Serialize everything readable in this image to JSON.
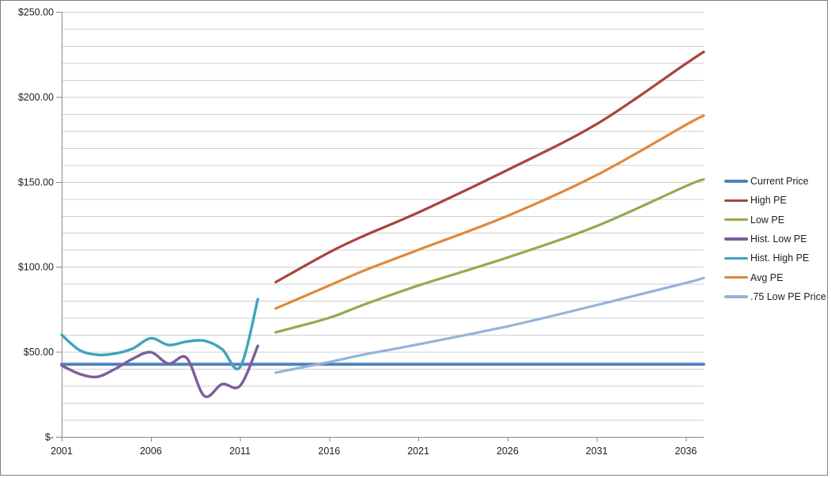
{
  "chart_data": {
    "type": "line",
    "title": "",
    "xlabel": "",
    "ylabel": "",
    "grid": "horizontal-minor-every-10",
    "legend_position": "right",
    "x_axis": {
      "min": 2001,
      "max": 2037,
      "tick_labels": [
        "2001",
        "2006",
        "2011",
        "2016",
        "2021",
        "2026",
        "2031",
        "2036"
      ],
      "tick_values": [
        2001,
        2006,
        2011,
        2016,
        2021,
        2026,
        2031,
        2036
      ]
    },
    "y_axis": {
      "min": 0,
      "max": 250,
      "minor_step": 10,
      "major_step": 50,
      "ticks": [
        {
          "value": 0,
          "label": "$-"
        },
        {
          "value": 50,
          "label": "$50.00"
        },
        {
          "value": 100,
          "label": "$100.00"
        },
        {
          "value": 150,
          "label": "$150.00"
        },
        {
          "value": 200,
          "label": "$200.00"
        },
        {
          "value": 250,
          "label": "$250.00"
        }
      ]
    },
    "series": [
      {
        "name": "Current Price",
        "color": "#4F81BD",
        "width": 3.8,
        "smooth": false,
        "points": [
          [
            2001,
            42.7
          ],
          [
            2037,
            42.7
          ]
        ]
      },
      {
        "name": "High PE",
        "color": "#A8443E",
        "width": 3.2,
        "smooth": true,
        "points": [
          [
            2013,
            91
          ],
          [
            2016,
            108.5
          ],
          [
            2018,
            118.5
          ],
          [
            2021,
            132
          ],
          [
            2026,
            157
          ],
          [
            2031,
            184
          ],
          [
            2036,
            219.5
          ],
          [
            2037,
            226.5
          ]
        ]
      },
      {
        "name": "Low PE",
        "color": "#8FAC51",
        "width": 3.2,
        "smooth": true,
        "points": [
          [
            2013,
            61.5
          ],
          [
            2016,
            70
          ],
          [
            2018,
            78
          ],
          [
            2021,
            89
          ],
          [
            2026,
            105.5
          ],
          [
            2031,
            124
          ],
          [
            2036,
            147.5
          ],
          [
            2037,
            151.5
          ]
        ]
      },
      {
        "name": "Hist. Low PE",
        "color": "#7B5F99",
        "width": 3.4,
        "smooth": true,
        "points": [
          [
            2001,
            42
          ],
          [
            2002,
            37
          ],
          [
            2003,
            35.3
          ],
          [
            2004,
            40
          ],
          [
            2005,
            46
          ],
          [
            2006,
            49.8
          ],
          [
            2007,
            43
          ],
          [
            2008,
            46.5
          ],
          [
            2009,
            24
          ],
          [
            2010,
            31
          ],
          [
            2011,
            30
          ],
          [
            2012,
            53.5
          ]
        ]
      },
      {
        "name": "Hist. High PE",
        "color": "#3FA4BC",
        "width": 3.4,
        "smooth": true,
        "points": [
          [
            2001,
            60
          ],
          [
            2002,
            51
          ],
          [
            2003,
            48.3
          ],
          [
            2004,
            49
          ],
          [
            2005,
            52
          ],
          [
            2006,
            58
          ],
          [
            2007,
            54
          ],
          [
            2008,
            56
          ],
          [
            2009,
            56.5
          ],
          [
            2010,
            51.5
          ],
          [
            2011,
            41
          ],
          [
            2012,
            81
          ]
        ]
      },
      {
        "name": "Avg PE",
        "color": "#E0883C",
        "width": 3.2,
        "smooth": true,
        "points": [
          [
            2013,
            75.5
          ],
          [
            2016,
            89
          ],
          [
            2018,
            98
          ],
          [
            2021,
            110
          ],
          [
            2026,
            130
          ],
          [
            2031,
            154
          ],
          [
            2036,
            183.5
          ],
          [
            2037,
            189
          ]
        ]
      },
      {
        "name": ".75 Low PE Price",
        "color": "#95B3D7",
        "width": 3.2,
        "smooth": true,
        "points": [
          [
            2013,
            37.8
          ],
          [
            2016,
            44
          ],
          [
            2018,
            48.5
          ],
          [
            2021,
            54.4
          ],
          [
            2026,
            65
          ],
          [
            2031,
            77.5
          ],
          [
            2036,
            90.5
          ],
          [
            2037,
            93.5
          ]
        ]
      }
    ],
    "colors": {
      "gridline": "#CFCFCF",
      "axis": "#898989",
      "text": "#1f1f1f",
      "frame_border": "#7F7F7F",
      "background": "#FFFFFF"
    }
  }
}
